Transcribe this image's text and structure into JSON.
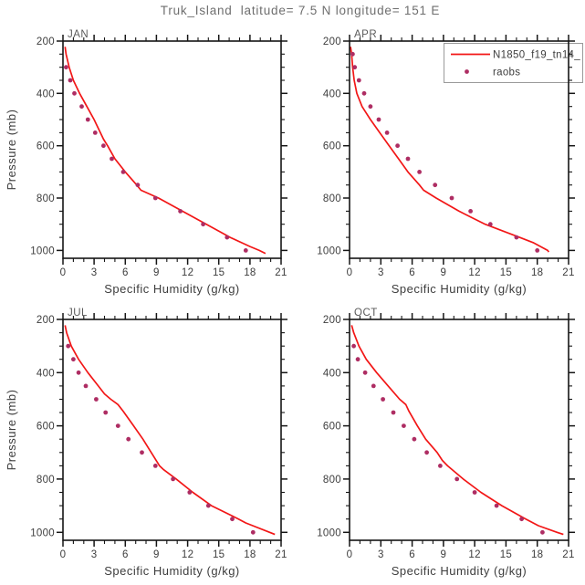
{
  "title": "Truk_Island  latitude= 7.5 N longitude= 151 E",
  "colors": {
    "model_line": "#f21616",
    "raobs_marker": "#ae2d63",
    "frame": "#151515",
    "tick": "#151515",
    "text": "#3d3d3d",
    "legend_border": "#9a9a9a",
    "legend_background": "#ffffff"
  },
  "legend": {
    "entries": [
      {
        "type": "line",
        "label": "N1850_f19_tn14_"
      },
      {
        "type": "marker",
        "label": "raobs"
      }
    ]
  },
  "axes": {
    "xlabel": "Specific Humidity (g/kg)",
    "ylabel": "Pressure (mb)",
    "xlim": [
      0,
      21
    ],
    "xticks": [
      0,
      3,
      6,
      9,
      12,
      15,
      18,
      21
    ],
    "x_minor_step": 1,
    "ylim": [
      200,
      1030
    ],
    "yticks": [
      200,
      400,
      600,
      800,
      1000
    ],
    "y_minor_step": 50,
    "y_inverted_note": "pressure increases downward",
    "grid": false
  },
  "chart_data": [
    {
      "type": "line",
      "panel": "JAN",
      "series": [
        {
          "name": "N1850_f19_tn14_",
          "style": "line",
          "pressure_mb": [
            222,
            250,
            300,
            350,
            400,
            450,
            500,
            550,
            575,
            600,
            650,
            700,
            750,
            770,
            800,
            850,
            900,
            950,
            985,
            1000,
            1012
          ],
          "q_g_per_kg": [
            0.2,
            0.3,
            0.6,
            1.0,
            1.6,
            2.3,
            3.0,
            3.6,
            3.9,
            4.3,
            5.0,
            6.0,
            7.1,
            7.5,
            9.2,
            11.5,
            13.8,
            16.1,
            18.0,
            18.9,
            19.5
          ]
        },
        {
          "name": "raobs",
          "style": "scatter",
          "pressure_mb": [
            300,
            350,
            400,
            450,
            500,
            550,
            600,
            650,
            700,
            750,
            800,
            850,
            900,
            950,
            1000
          ],
          "q_g_per_kg": [
            0.3,
            0.7,
            1.1,
            1.8,
            2.4,
            3.1,
            3.9,
            4.7,
            5.8,
            7.2,
            8.9,
            11.3,
            13.5,
            15.8,
            17.6
          ]
        }
      ]
    },
    {
      "type": "line",
      "panel": "APR",
      "series": [
        {
          "name": "N1850_f19_tn14_",
          "style": "line",
          "pressure_mb": [
            222,
            250,
            300,
            350,
            400,
            450,
            500,
            550,
            600,
            650,
            700,
            750,
            770,
            800,
            850,
            900,
            950,
            970,
            1000,
            1006
          ],
          "q_g_per_kg": [
            0.1,
            0.2,
            0.3,
            0.45,
            0.7,
            1.2,
            2.0,
            2.9,
            3.8,
            4.7,
            5.6,
            6.7,
            7.1,
            8.3,
            10.5,
            13.0,
            16.3,
            17.6,
            19.0,
            19.1
          ]
        },
        {
          "name": "raobs",
          "style": "scatter",
          "pressure_mb": [
            250,
            300,
            350,
            400,
            450,
            500,
            550,
            600,
            650,
            700,
            750,
            800,
            850,
            900,
            950,
            1000
          ],
          "q_g_per_kg": [
            0.3,
            0.5,
            0.9,
            1.4,
            2.0,
            2.8,
            3.6,
            4.6,
            5.6,
            6.7,
            8.2,
            9.8,
            11.6,
            13.5,
            16.0,
            18.0
          ]
        }
      ]
    },
    {
      "type": "line",
      "panel": "JUL",
      "series": [
        {
          "name": "N1850_f19_tn14_",
          "style": "line",
          "pressure_mb": [
            222,
            250,
            300,
            350,
            400,
            450,
            480,
            500,
            520,
            545,
            600,
            650,
            700,
            750,
            765,
            800,
            850,
            900,
            950,
            965,
            1000,
            1008
          ],
          "q_g_per_kg": [
            0.2,
            0.35,
            0.8,
            1.5,
            2.4,
            3.4,
            4.0,
            4.6,
            5.3,
            5.8,
            6.8,
            7.7,
            8.5,
            9.3,
            9.7,
            10.9,
            12.5,
            14.3,
            16.9,
            17.6,
            19.9,
            20.4
          ]
        },
        {
          "name": "raobs",
          "style": "scatter",
          "pressure_mb": [
            300,
            350,
            400,
            450,
            500,
            550,
            600,
            650,
            700,
            750,
            800,
            850,
            900,
            950,
            1000
          ],
          "q_g_per_kg": [
            0.5,
            1.0,
            1.5,
            2.2,
            3.2,
            4.1,
            5.3,
            6.3,
            7.6,
            8.9,
            10.6,
            12.2,
            14.0,
            16.3,
            18.3
          ]
        }
      ]
    },
    {
      "type": "line",
      "panel": "OCT",
      "series": [
        {
          "name": "N1850_f19_tn14_",
          "style": "line",
          "pressure_mb": [
            222,
            250,
            300,
            350,
            400,
            450,
            500,
            520,
            545,
            600,
            650,
            700,
            730,
            750,
            800,
            850,
            900,
            950,
            975,
            1000,
            1008
          ],
          "q_g_per_kg": [
            0.2,
            0.4,
            0.9,
            1.6,
            2.6,
            3.7,
            4.8,
            5.4,
            5.7,
            6.5,
            7.3,
            8.4,
            8.9,
            9.4,
            10.9,
            12.6,
            14.6,
            16.9,
            18.1,
            19.9,
            20.5
          ]
        },
        {
          "name": "raobs",
          "style": "scatter",
          "pressure_mb": [
            300,
            350,
            400,
            450,
            500,
            550,
            600,
            650,
            700,
            750,
            800,
            850,
            900,
            950,
            1000
          ],
          "q_g_per_kg": [
            0.4,
            0.8,
            1.5,
            2.3,
            3.2,
            4.2,
            5.2,
            6.2,
            7.4,
            8.7,
            10.3,
            12.0,
            14.1,
            16.5,
            18.5
          ]
        }
      ]
    }
  ]
}
